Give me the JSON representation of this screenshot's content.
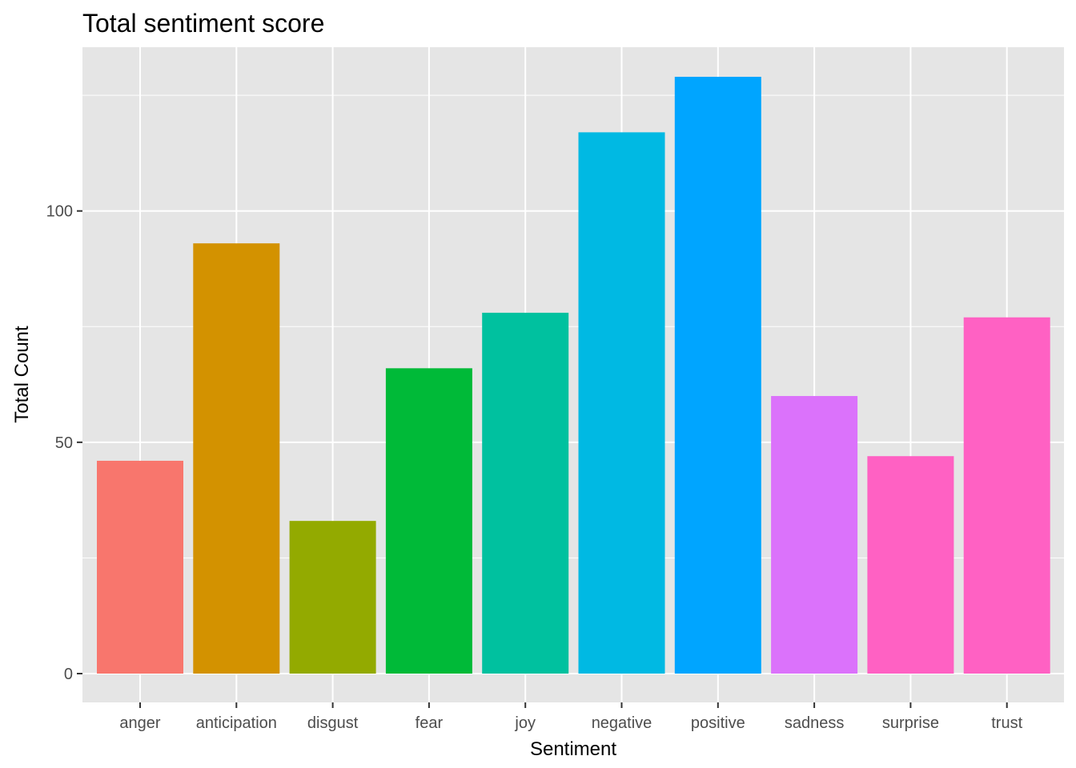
{
  "chart_data": {
    "type": "bar",
    "title": "Total sentiment score",
    "xlabel": "Sentiment",
    "ylabel": "Total Count",
    "categories": [
      "anger",
      "anticipation",
      "disgust",
      "fear",
      "joy",
      "negative",
      "positive",
      "sadness",
      "surprise",
      "trust"
    ],
    "values": [
      46,
      93,
      33,
      66,
      78,
      117,
      129,
      60,
      47,
      77
    ],
    "colors": [
      "#F8766D",
      "#D39200",
      "#93AA00",
      "#00BA38",
      "#00C19F",
      "#00B9E3",
      "#00A5FF",
      "#DB72FB",
      "#FF61C3",
      "#FF61C3"
    ],
    "yticks": [
      0,
      50,
      100
    ],
    "ylim": [
      -6,
      135
    ],
    "grid": true,
    "panel_background": "#EBEBEB",
    "legend": "none"
  }
}
